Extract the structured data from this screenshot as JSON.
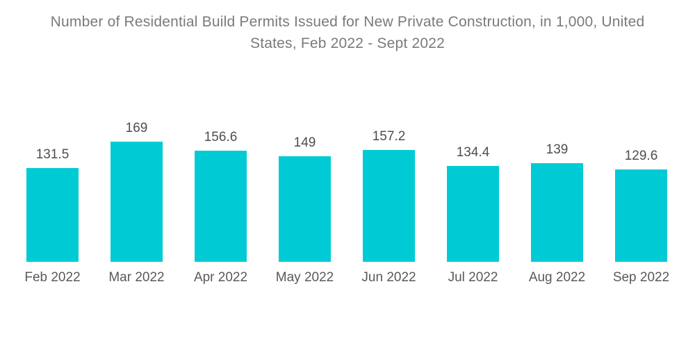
{
  "title": "Number of Residential Build Permits Issued for New Private Construction, in 1,000, United States, Feb 2022 - Sept 2022",
  "colors": {
    "bar": "#00CBD4",
    "title_text": "#7a7a7a",
    "value_text": "#4d4d4d",
    "axis_text": "#595959",
    "background": "#ffffff"
  },
  "chart_data": {
    "type": "bar",
    "title": "Number of Residential Build Permits Issued for New Private Construction, in 1,000, United States, Feb 2022 - Sept 2022",
    "categories": [
      "Feb 2022",
      "Mar 2022",
      "Apr 2022",
      "May 2022",
      "Jun 2022",
      "Jul 2022",
      "Aug 2022",
      "Sep 2022"
    ],
    "values": [
      131.5,
      169,
      156.6,
      149,
      157.2,
      134.4,
      139,
      129.6
    ],
    "value_labels": [
      "131.5",
      "169",
      "156.6",
      "149",
      "157.2",
      "134.4",
      "139",
      "129.6"
    ],
    "xlabel": "",
    "ylabel": "",
    "ylim": [
      0,
      169
    ],
    "grid": false,
    "legend": "none",
    "bar_color": "#00CBD4"
  }
}
